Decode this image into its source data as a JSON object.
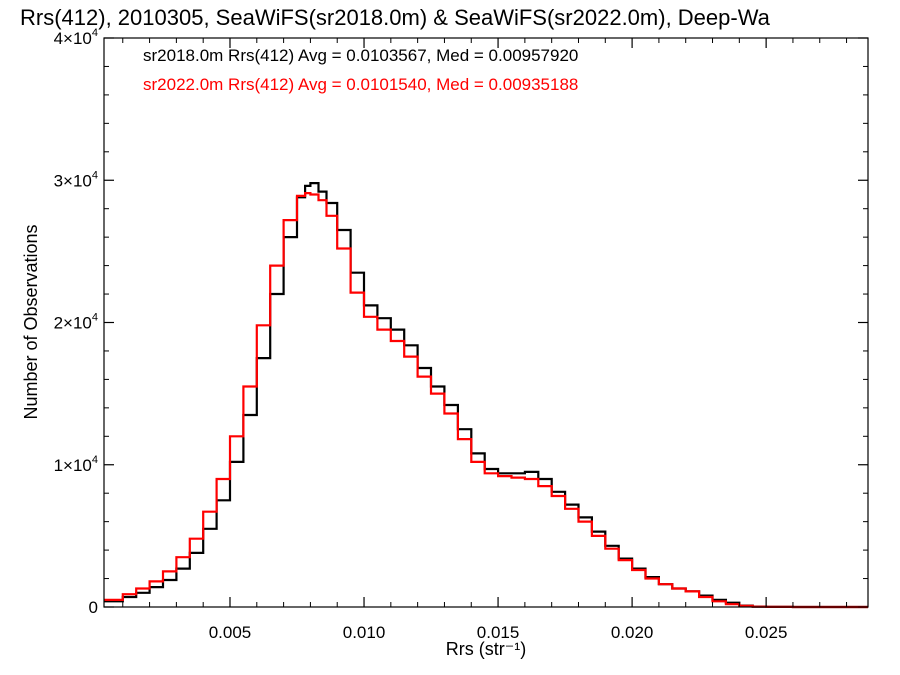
{
  "chart_data": {
    "type": "line",
    "step": true,
    "title": "Rrs(412), 2010305, SeaWiFS(sr2018.0m) & SeaWiFS(sr2022.0m), Deep-Wa",
    "xlabel": "Rrs (str⁻¹)",
    "ylabel": "Number of Observations",
    "xlim": [
      0.0003,
      0.0288
    ],
    "ylim": [
      0,
      40000
    ],
    "x_ticks": [
      0.005,
      0.01,
      0.015,
      0.02,
      0.025
    ],
    "x_tick_labels": [
      "0.005",
      "0.010",
      "0.015",
      "0.020",
      "0.025"
    ],
    "y_ticks": [
      0,
      10000,
      20000,
      30000,
      40000
    ],
    "y_tick_labels": [
      {
        "mantissa": "0",
        "exp": ""
      },
      {
        "mantissa": "1×10",
        "exp": "4"
      },
      {
        "mantissa": "2×10",
        "exp": "4"
      },
      {
        "mantissa": "3×10",
        "exp": "4"
      },
      {
        "mantissa": "4×10",
        "exp": "4"
      }
    ],
    "legend_position": "top-left",
    "annotations": [
      {
        "text": "sr2018.0m Rrs(412) Avg = 0.0103567, Med = 0.00957920",
        "color": "#000000"
      },
      {
        "text": "sr2022.0m Rrs(412) Avg = 0.0101540, Med = 0.00935188",
        "color": "#ff0000"
      }
    ],
    "series": [
      {
        "color": "#000000",
        "x": [
          0.0003,
          0.001,
          0.0015,
          0.002,
          0.0025,
          0.003,
          0.0035,
          0.004,
          0.0045,
          0.005,
          0.0055,
          0.006,
          0.0065,
          0.007,
          0.0075,
          0.0078,
          0.008,
          0.0083,
          0.0086,
          0.009,
          0.0095,
          0.01,
          0.0105,
          0.011,
          0.0115,
          0.012,
          0.0125,
          0.013,
          0.0135,
          0.014,
          0.0145,
          0.015,
          0.0155,
          0.016,
          0.0165,
          0.017,
          0.0175,
          0.018,
          0.0185,
          0.019,
          0.0195,
          0.02,
          0.0205,
          0.021,
          0.0215,
          0.022,
          0.0225,
          0.023,
          0.0235,
          0.024,
          0.0245,
          0.025,
          0.026,
          0.027,
          0.0288
        ],
        "y": [
          400,
          700,
          1000,
          1400,
          1900,
          2700,
          3800,
          5500,
          7500,
          10200,
          13500,
          17500,
          22000,
          26000,
          28800,
          29600,
          29800,
          29200,
          28400,
          26500,
          23500,
          21200,
          20300,
          19500,
          18400,
          16800,
          15500,
          14200,
          12500,
          10800,
          9700,
          9400,
          9400,
          9500,
          9000,
          8100,
          7200,
          6300,
          5300,
          4300,
          3400,
          2700,
          2100,
          1600,
          1300,
          1100,
          800,
          500,
          300,
          100,
          30,
          10,
          0,
          0,
          0
        ]
      },
      {
        "color": "#ff0000",
        "x": [
          0.0003,
          0.001,
          0.0015,
          0.002,
          0.0025,
          0.003,
          0.0035,
          0.004,
          0.0045,
          0.005,
          0.0055,
          0.006,
          0.0065,
          0.007,
          0.0075,
          0.0078,
          0.008,
          0.0083,
          0.0086,
          0.009,
          0.0095,
          0.01,
          0.0105,
          0.011,
          0.0115,
          0.012,
          0.0125,
          0.013,
          0.0135,
          0.014,
          0.0145,
          0.015,
          0.0155,
          0.016,
          0.0165,
          0.017,
          0.0175,
          0.018,
          0.0185,
          0.019,
          0.0195,
          0.02,
          0.0205,
          0.021,
          0.0215,
          0.022,
          0.0225,
          0.023,
          0.0235,
          0.024,
          0.0245,
          0.025,
          0.026,
          0.027,
          0.0288
        ],
        "y": [
          500,
          900,
          1300,
          1800,
          2500,
          3500,
          4800,
          6700,
          9000,
          12000,
          15500,
          19800,
          24000,
          27200,
          28900,
          29100,
          29000,
          28600,
          27500,
          25200,
          22100,
          20400,
          19500,
          18700,
          17600,
          16200,
          15000,
          13600,
          11800,
          10200,
          9400,
          9200,
          9100,
          9000,
          8500,
          7800,
          6900,
          6000,
          5000,
          4100,
          3300,
          2600,
          2000,
          1600,
          1300,
          1100,
          700,
          400,
          200,
          80,
          20,
          5,
          0,
          0,
          0
        ]
      }
    ]
  }
}
